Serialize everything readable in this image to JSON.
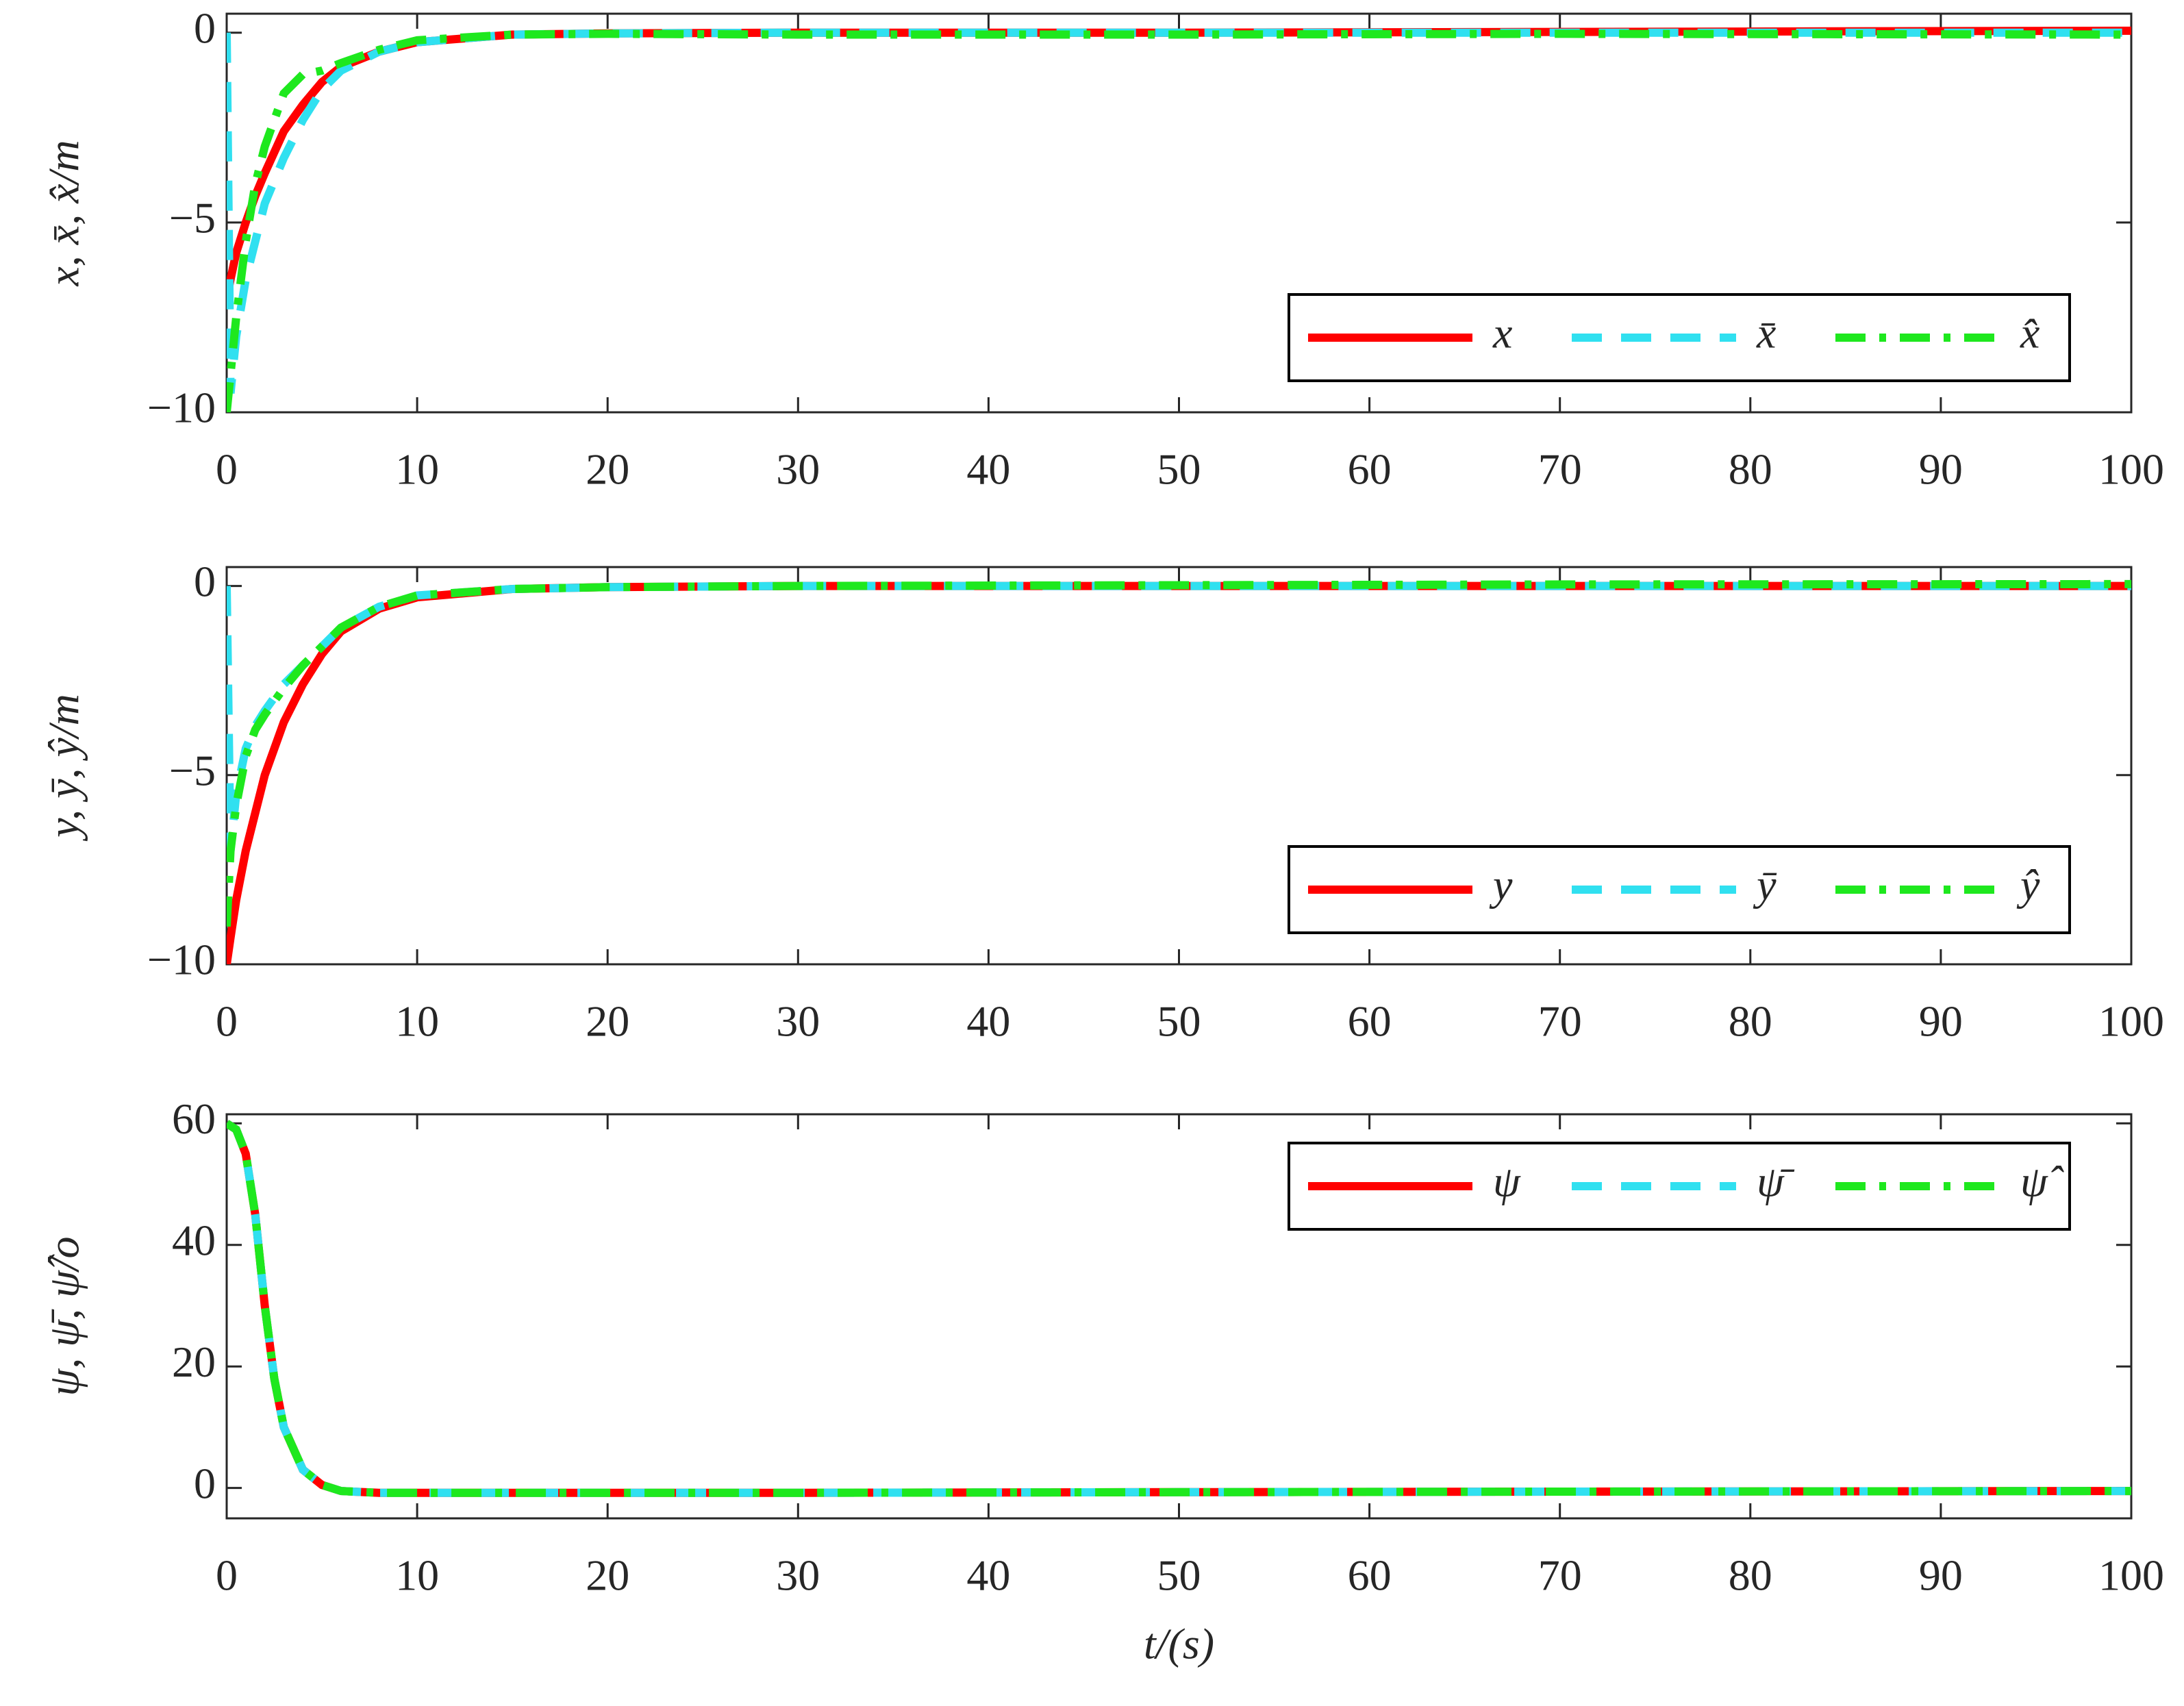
{
  "chart_data": [
    {
      "type": "line",
      "ylabel": "x, x̄, x̂/m",
      "legend": "lower right",
      "x": [
        0,
        0.2,
        0.5,
        1,
        1.5,
        2,
        3,
        4,
        5,
        6,
        8,
        10,
        15,
        20,
        30,
        50,
        70,
        100
      ],
      "xlim": [
        0,
        100
      ],
      "xticks": [
        0,
        10,
        20,
        30,
        40,
        50,
        60,
        70,
        80,
        90,
        100
      ],
      "ylim": [
        -10,
        0.5
      ],
      "yticks": [
        {
          "value": -10,
          "label": "−10"
        },
        {
          "value": -5,
          "label": "−5"
        },
        0
      ],
      "series": [
        {
          "name": "x",
          "color": "#ff0000",
          "style": "solid",
          "values": [
            -7,
            -6.5,
            -5.8,
            -5,
            -4.3,
            -3.7,
            -2.6,
            -1.9,
            -1.3,
            -0.9,
            -0.5,
            -0.25,
            -0.05,
            -0.02,
            0,
            0,
            0.02,
            0.05
          ]
        },
        {
          "name": "x̄",
          "color": "#30e0f0",
          "style": "dashed",
          "values": [
            0,
            -9.5,
            -8,
            -6.5,
            -5.5,
            -4.5,
            -3.3,
            -2.3,
            -1.5,
            -1,
            -0.5,
            -0.25,
            -0.05,
            -0.02,
            0,
            0,
            0,
            0
          ]
        },
        {
          "name": "x̂",
          "color": "#1ee81e",
          "style": "dashdot",
          "values": [
            -10,
            -9,
            -7.5,
            -5.5,
            -4,
            -3,
            -1.6,
            -1.1,
            -1,
            -0.8,
            -0.45,
            -0.2,
            -0.05,
            -0.03,
            -0.05,
            -0.05,
            -0.03,
            -0.05
          ]
        }
      ]
    },
    {
      "type": "line",
      "ylabel": "y, ȳ, ŷ/m",
      "legend": "lower right",
      "x": [
        0,
        0.2,
        0.5,
        1,
        1.5,
        2,
        3,
        4,
        5,
        6,
        8,
        10,
        15,
        20,
        30,
        50,
        70,
        100
      ],
      "xlim": [
        0,
        100
      ],
      "xticks": [
        0,
        10,
        20,
        30,
        40,
        50,
        60,
        70,
        80,
        90,
        100
      ],
      "ylim": [
        -10,
        0.5
      ],
      "yticks": [
        {
          "value": -10,
          "label": "−10"
        },
        {
          "value": -5,
          "label": "−5"
        },
        0
      ],
      "series": [
        {
          "name": "y",
          "color": "#ff0000",
          "style": "solid",
          "values": [
            -10,
            -9.3,
            -8.3,
            -7,
            -6,
            -5,
            -3.6,
            -2.6,
            -1.8,
            -1.2,
            -0.6,
            -0.3,
            -0.08,
            -0.03,
            0,
            0,
            0,
            0
          ]
        },
        {
          "name": "ȳ",
          "color": "#30e0f0",
          "style": "dashed",
          "values": [
            0,
            -7,
            -5.5,
            -4.3,
            -3.7,
            -3.3,
            -2.6,
            -2.1,
            -1.6,
            -1.1,
            -0.55,
            -0.25,
            -0.08,
            -0.03,
            0,
            0,
            0,
            0
          ]
        },
        {
          "name": "ŷ",
          "color": "#1ee81e",
          "style": "dashdot",
          "values": [
            -9,
            -7,
            -5.8,
            -4.5,
            -3.8,
            -3.4,
            -2.7,
            -2.1,
            -1.6,
            -1.1,
            -0.55,
            -0.25,
            -0.08,
            -0.03,
            0,
            0.02,
            0.04,
            0.05
          ]
        }
      ]
    },
    {
      "type": "line",
      "ylabel": "ψ, ψ̄, ψ̂/o",
      "xlabel": "t/(s)",
      "legend": "upper right",
      "x": [
        0,
        0.5,
        1,
        1.5,
        2,
        2.5,
        3,
        4,
        5,
        6,
        8,
        10,
        20,
        30,
        50,
        70,
        100
      ],
      "xlim": [
        0,
        100
      ],
      "xticks": [
        0,
        10,
        20,
        30,
        40,
        50,
        60,
        70,
        80,
        90,
        100
      ],
      "ylim": [
        -5,
        61.5
      ],
      "yticks": [
        0,
        20,
        40,
        60
      ],
      "series": [
        {
          "name": "ψ",
          "color": "#ff0000",
          "style": "solid",
          "values": [
            60,
            59,
            55,
            45,
            30,
            18,
            10,
            3,
            0.5,
            -0.5,
            -0.8,
            -0.8,
            -0.8,
            -0.8,
            -0.7,
            -0.6,
            -0.5
          ]
        },
        {
          "name": "ψ̄",
          "color": "#30e0f0",
          "style": "dashed",
          "values": [
            60,
            59,
            55,
            45,
            30,
            18,
            10,
            3,
            0.5,
            -0.5,
            -0.8,
            -0.8,
            -0.8,
            -0.8,
            -0.7,
            -0.6,
            -0.5
          ]
        },
        {
          "name": "ψ̂",
          "color": "#1ee81e",
          "style": "dashdot",
          "values": [
            60,
            59,
            55,
            45,
            30,
            18,
            10,
            3,
            0.5,
            -0.5,
            -0.8,
            -0.8,
            -0.8,
            -0.8,
            -0.7,
            -0.6,
            -0.5
          ]
        }
      ]
    }
  ]
}
